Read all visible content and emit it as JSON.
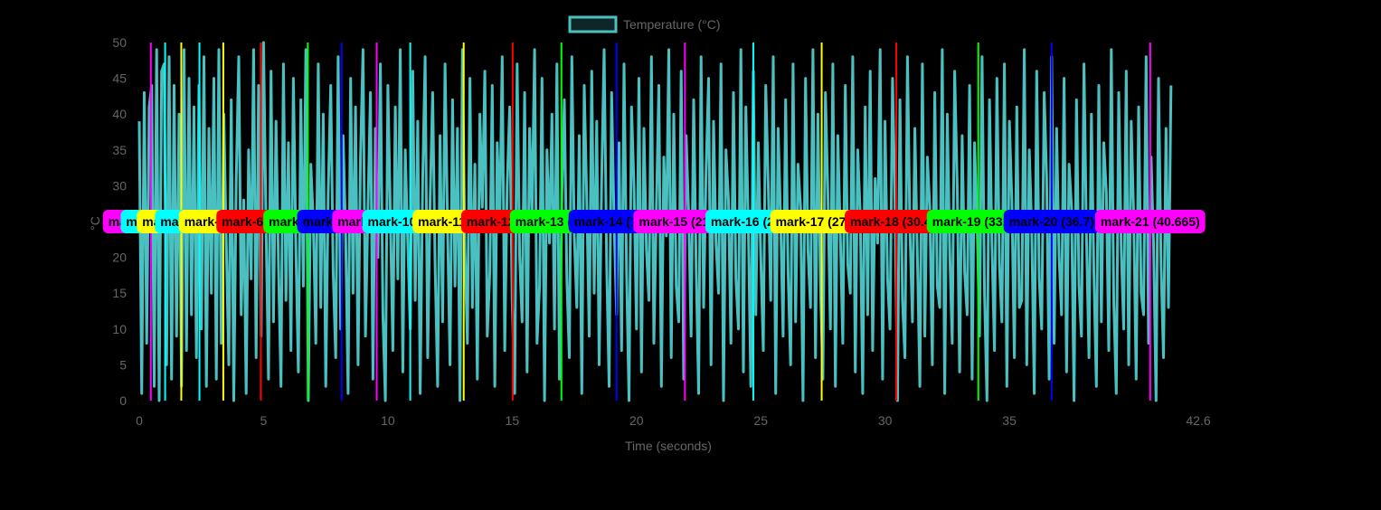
{
  "chart_data": {
    "type": "line",
    "legend": {
      "position": "top-center",
      "label": "Temperature (°C)"
    },
    "xlabel": "Time (seconds)",
    "ylabel": "°C",
    "xlim": [
      0,
      42.6
    ],
    "ylim": [
      0,
      50
    ],
    "x_ticks": [
      {
        "value": 0,
        "label": "0"
      },
      {
        "value": 5,
        "label": "5"
      },
      {
        "value": 10,
        "label": "10"
      },
      {
        "value": 15,
        "label": "15"
      },
      {
        "value": 20,
        "label": "20"
      },
      {
        "value": 25,
        "label": "25"
      },
      {
        "value": 30,
        "label": "30"
      },
      {
        "value": 35,
        "label": "35"
      },
      {
        "value": 42.6,
        "label": "42.6"
      }
    ],
    "y_ticks": [
      {
        "value": 0,
        "label": "0"
      },
      {
        "value": 5,
        "label": "5"
      },
      {
        "value": 10,
        "label": "10"
      },
      {
        "value": 15,
        "label": "15"
      },
      {
        "value": 20,
        "label": "20"
      },
      {
        "value": 25,
        "label": "25"
      },
      {
        "value": 30,
        "label": "30"
      },
      {
        "value": 35,
        "label": "35"
      },
      {
        "value": 40,
        "label": "40"
      },
      {
        "value": 45,
        "label": "45"
      },
      {
        "value": 50,
        "label": "50"
      }
    ],
    "grid": false,
    "series": [
      {
        "name": "Temperature (°C)",
        "color": "#4bc0c0",
        "x": [
          0,
          0.1,
          0.2,
          0.3,
          0.4,
          0.5,
          0.6,
          0.7,
          0.8,
          0.9,
          1.0,
          1.1,
          1.2,
          1.3,
          1.4,
          1.5,
          1.6,
          1.7,
          1.8,
          1.9,
          2.0,
          2.1,
          2.2,
          2.3,
          2.4,
          2.5,
          2.6,
          2.7,
          2.8,
          2.9,
          3.0,
          3.1,
          3.2,
          3.3,
          3.4,
          3.5,
          3.6,
          3.7,
          3.8,
          3.9,
          4.0,
          4.1,
          4.2,
          4.3,
          4.4,
          4.5,
          4.6,
          4.7,
          4.8,
          4.9,
          5.0,
          5.1,
          5.2,
          5.3,
          5.4,
          5.5,
          5.6,
          5.7,
          5.8,
          5.9,
          6.0,
          6.1,
          6.2,
          6.3,
          6.4,
          6.5,
          6.6,
          6.7,
          6.8,
          6.9,
          7.0,
          7.1,
          7.2,
          7.3,
          7.4,
          7.5,
          7.6,
          7.7,
          7.8,
          7.9,
          8.0,
          8.1,
          8.2,
          8.3,
          8.4,
          8.5,
          8.6,
          8.7,
          8.8,
          8.9,
          9.0,
          9.1,
          9.2,
          9.3,
          9.4,
          9.5,
          9.6,
          9.7,
          9.8,
          9.9,
          10.0,
          10.1,
          10.2,
          10.3,
          10.4,
          10.5,
          10.6,
          10.7,
          10.8,
          10.9,
          11.0,
          11.1,
          11.2,
          11.3,
          11.4,
          11.5,
          11.6,
          11.7,
          11.8,
          11.9,
          12.0,
          12.1,
          12.2,
          12.3,
          12.4,
          12.5,
          12.6,
          12.7,
          12.8,
          12.9,
          13.0,
          13.1,
          13.2,
          13.3,
          13.4,
          13.5,
          13.6,
          13.7,
          13.8,
          13.9,
          14.0,
          14.1,
          14.2,
          14.3,
          14.4,
          14.5,
          14.6,
          14.7,
          14.8,
          14.9,
          15.0,
          15.1,
          15.2,
          15.3,
          15.4,
          15.5,
          15.6,
          15.7,
          15.8,
          15.9,
          16.0,
          16.1,
          16.2,
          16.3,
          16.4,
          16.5,
          16.6,
          16.7,
          16.8,
          16.9,
          17.0,
          17.1,
          17.2,
          17.3,
          17.4,
          17.5,
          17.6,
          17.7,
          17.8,
          17.9,
          18.0,
          18.1,
          18.2,
          18.3,
          18.4,
          18.5,
          18.6,
          18.7,
          18.8,
          18.9,
          19.0,
          19.1,
          19.2,
          19.3,
          19.4,
          19.5,
          19.6,
          19.7,
          19.8,
          19.9,
          20.0,
          20.1,
          20.2,
          20.3,
          20.4,
          20.5,
          20.6,
          20.7,
          20.8,
          20.9,
          21.0,
          21.1,
          21.2,
          21.3,
          21.4,
          21.5,
          21.6,
          21.7,
          21.8,
          21.9,
          22.0,
          22.1,
          22.2,
          22.3,
          22.4,
          22.5,
          22.6,
          22.7,
          22.8,
          22.9,
          23.0,
          23.1,
          23.2,
          23.3,
          23.4,
          23.5,
          23.6,
          23.7,
          23.8,
          23.9,
          24.0,
          24.1,
          24.2,
          24.3,
          24.4,
          24.5,
          24.6,
          24.7,
          24.8,
          24.9,
          25.0,
          25.1,
          25.2,
          25.3,
          25.4,
          25.5,
          25.6,
          25.7,
          25.8,
          25.9,
          26.0,
          26.1,
          26.2,
          26.3,
          26.4,
          26.5,
          26.6,
          26.7,
          26.8,
          26.9,
          27.0,
          27.1,
          27.2,
          27.3,
          27.4,
          27.5,
          27.6,
          27.7,
          27.8,
          27.9,
          28.0,
          28.1,
          28.2,
          28.3,
          28.4,
          28.5,
          28.6,
          28.7,
          28.8,
          28.9,
          29.0,
          29.1,
          29.2,
          29.3,
          29.4,
          29.5,
          29.6,
          29.7,
          29.8,
          29.9,
          30.0,
          30.1,
          30.2,
          30.3,
          30.4,
          30.5,
          30.6,
          30.7,
          30.8,
          30.9,
          31.0,
          31.1,
          31.2,
          31.3,
          31.4,
          31.5,
          31.6,
          31.7,
          31.8,
          31.9,
          32.0,
          32.1,
          32.2,
          32.3,
          32.4,
          32.5,
          32.6,
          32.7,
          32.8,
          32.9,
          33.0,
          33.1,
          33.2,
          33.3,
          33.4,
          33.5,
          33.6,
          33.7,
          33.8,
          33.9,
          34.0,
          34.1,
          34.2,
          34.3,
          34.4,
          34.5,
          34.6,
          34.7,
          34.8,
          34.9,
          35.0,
          35.1,
          35.2,
          35.3,
          35.4,
          35.5,
          35.6,
          35.7,
          35.8,
          35.9,
          36.0,
          36.1,
          36.2,
          36.3,
          36.4,
          36.5,
          36.6,
          36.7,
          36.8,
          36.9,
          37.0,
          37.1,
          37.2,
          37.3,
          37.4,
          37.5,
          37.6,
          37.7,
          37.8,
          37.9,
          38.0,
          38.1,
          38.2,
          38.3,
          38.4,
          38.5,
          38.6,
          38.7,
          38.8,
          38.9,
          39.0,
          39.1,
          39.2,
          39.3,
          39.4,
          39.5,
          39.6,
          39.7,
          39.8,
          39.9,
          40.0,
          40.1,
          40.2,
          40.3,
          40.4,
          40.5,
          40.6,
          40.7,
          40.8,
          40.9,
          41.0,
          41.1,
          41.2,
          41.3,
          41.4,
          41.5
        ],
        "y": [
          39,
          1,
          43,
          8,
          41,
          44,
          2,
          49,
          0,
          46,
          47,
          5,
          48,
          3,
          44,
          9,
          40,
          2,
          49,
          7,
          45,
          12,
          41,
          6,
          44,
          10,
          48,
          2,
          38,
          15,
          45,
          3,
          49,
          8,
          40,
          22,
          5,
          42,
          0,
          31,
          48,
          12,
          28,
          1,
          35,
          17,
          49,
          6,
          44,
          9,
          50,
          24,
          3,
          46,
          11,
          39,
          19,
          2,
          47,
          14,
          36,
          7,
          45,
          21,
          4,
          42,
          16,
          49,
          0,
          33,
          25,
          8,
          47,
          13,
          40,
          2,
          29,
          44,
          18,
          6,
          48,
          10,
          37,
          23,
          1,
          45,
          15,
          41,
          5,
          34,
          49,
          9,
          27,
          43,
          3,
          38,
          20,
          47,
          12,
          0,
          44,
          26,
          7,
          41,
          17,
          49,
          4,
          35,
          22,
          10,
          46,
          14,
          39,
          1,
          31,
          48,
          6,
          28,
          43,
          19,
          2,
          37,
          11,
          47,
          24,
          5,
          42,
          16,
          38,
          0,
          49,
          21,
          8,
          45,
          13,
          33,
          3,
          40,
          27,
          46,
          9,
          18,
          44,
          2,
          36,
          25,
          48,
          7,
          30,
          41,
          14,
          1,
          47,
          20,
          11,
          43,
          4,
          38,
          26,
          49,
          8,
          16,
          45,
          0,
          35,
          22,
          40,
          10,
          47,
          3,
          29,
          42,
          17,
          6,
          48,
          23,
          13,
          37,
          1,
          44,
          28,
          9,
          46,
          15,
          39,
          5,
          31,
          49,
          19,
          2,
          43,
          25,
          12,
          36,
          7,
          47,
          18,
          0,
          41,
          30,
          10,
          45,
          4,
          38,
          21,
          14,
          48,
          8,
          27,
          44,
          2,
          34,
          23,
          49,
          6,
          40,
          16,
          11,
          46,
          3,
          37,
          26,
          9,
          42,
          19,
          1,
          48,
          13,
          32,
          45,
          5,
          39,
          22,
          15,
          47,
          0,
          35,
          28,
          8,
          43,
          17,
          10,
          49,
          4,
          41,
          24,
          2,
          46,
          12,
          36,
          20,
          7,
          44,
          30,
          14,
          48,
          1,
          38,
          25,
          9,
          42,
          18,
          5,
          47,
          11,
          33,
          27,
          0,
          45,
          21,
          13,
          49,
          6,
          40,
          16,
          3,
          43,
          29,
          10,
          47,
          2,
          37,
          23,
          8,
          44,
          19,
          15,
          48,
          4,
          35,
          26,
          1,
          41,
          12,
          46,
          7,
          31,
          22,
          49,
          3,
          39,
          17,
          10,
          45,
          28,
          0,
          42,
          14,
          6,
          48,
          24,
          11,
          38,
          20,
          2,
          47,
          9,
          34,
          27,
          5,
          43,
          16,
          13,
          49,
          1,
          40,
          21,
          8,
          46,
          30,
          4,
          37,
          18,
          12,
          44,
          3,
          36,
          25,
          9,
          48,
          15,
          0,
          42,
          22,
          7,
          45,
          19,
          11,
          47,
          2,
          39,
          28,
          6,
          41,
          13,
          14,
          49,
          5,
          35,
          24,
          1,
          46,
          17,
          10,
          43,
          31,
          3,
          48,
          8,
          38,
          20,
          12,
          45,
          4,
          33,
          27,
          0,
          42,
          16,
          9,
          47,
          23,
          6,
          40,
          18,
          2,
          44,
          11,
          36,
          29,
          7,
          49,
          14,
          1,
          43,
          21,
          10,
          46,
          5,
          39,
          26,
          3,
          41,
          15,
          12,
          48,
          8,
          34,
          22,
          0,
          45,
          19,
          6,
          38,
          13,
          44
        ]
      }
    ],
    "markers": [
      {
        "label": "mark-1 (0.465)",
        "x": 0.465,
        "color": "#ff00ff"
      },
      {
        "label": "mark-2 (1.04)",
        "x": 1.04,
        "color": "#00ffff"
      },
      {
        "label": "mark-3 (1.69)",
        "x": 1.69,
        "color": "#ffff00"
      },
      {
        "label": "mark-4 (2.42)",
        "x": 2.42,
        "color": "#00ffff"
      },
      {
        "label": "mark-5 (3.38)",
        "x": 3.38,
        "color": "#ffff00"
      },
      {
        "label": "mark-6 (4.89)",
        "x": 4.89,
        "color": "#ff0000"
      },
      {
        "label": "mark-7 (6.78)",
        "x": 6.78,
        "color": "#00ff00"
      },
      {
        "label": "mark-8 (8.14)",
        "x": 8.14,
        "color": "#0000ff"
      },
      {
        "label": "mark-9 (9.55)",
        "x": 9.55,
        "color": "#ff00ff"
      },
      {
        "label": "mark-10 (10.9)",
        "x": 10.9,
        "color": "#00ffff"
      },
      {
        "label": "mark-11 (13.05)",
        "x": 13.05,
        "color": "#ffff00"
      },
      {
        "label": "mark-12 (15.02)",
        "x": 15.02,
        "color": "#ff0000"
      },
      {
        "label": "mark-13 (16.98)",
        "x": 16.98,
        "color": "#00ff00"
      },
      {
        "label": "mark-14 (19.2)",
        "x": 19.2,
        "color": "#0000ff"
      },
      {
        "label": "mark-15 (21.95)",
        "x": 21.95,
        "color": "#ff00ff"
      },
      {
        "label": "mark-16 (24.7)",
        "x": 24.7,
        "color": "#00ffff"
      },
      {
        "label": "mark-17 (27.45)",
        "x": 27.45,
        "color": "#ffff00"
      },
      {
        "label": "mark-18 (30.45)",
        "x": 30.45,
        "color": "#ff0000"
      },
      {
        "label": "mark-19 (33.75)",
        "x": 33.75,
        "color": "#00ff00"
      },
      {
        "label": "mark-20 (36.7)",
        "x": 36.7,
        "color": "#0000ff"
      },
      {
        "label": "mark-21 (40.665)",
        "x": 40.665,
        "color": "#ff00ff"
      }
    ],
    "marker_label_y": 25
  }
}
